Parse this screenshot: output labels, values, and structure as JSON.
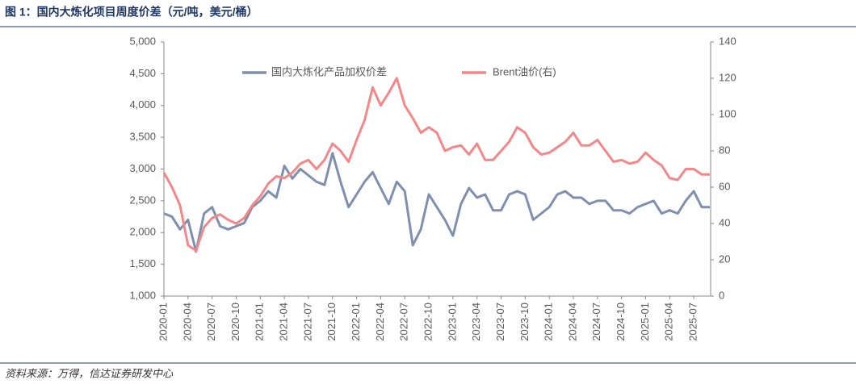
{
  "title": "图 1：国内大炼化项目周度价差（元/吨，美元/桶）",
  "source": "资料来源：万得，信达证券研发中心",
  "chart_data": {
    "type": "line",
    "categories": [
      "2020-01",
      null,
      null,
      "2020-04",
      null,
      null,
      "2020-07",
      null,
      null,
      "2020-10",
      null,
      null,
      "2021-01",
      null,
      null,
      "2021-04",
      null,
      null,
      "2021-07",
      null,
      null,
      "2021-10",
      null,
      null,
      "2022-01",
      null,
      null,
      "2022-04",
      null,
      null,
      "2022-07",
      null,
      null,
      "2022-10",
      null,
      null,
      "2023-01",
      null,
      null,
      "2023-04",
      null,
      null,
      "2023-07",
      null,
      null,
      "2023-10",
      null,
      null,
      "2024-01",
      null,
      null,
      "2024-04",
      null,
      null,
      "2024-07",
      null,
      null,
      "2024-10",
      null,
      null,
      "2025-01",
      null,
      null,
      "2025-04",
      null,
      null,
      "2025-07",
      null,
      null
    ],
    "series": [
      {
        "name": "国内大炼化产品加权价差",
        "color": "#7f8fae",
        "values": [
          2300,
          2250,
          2050,
          2200,
          1700,
          2300,
          2400,
          2100,
          2050,
          2100,
          2150,
          2400,
          2500,
          2650,
          2550,
          3050,
          2850,
          3000,
          2900,
          2800,
          2750,
          3250,
          2800,
          2400,
          2600,
          2800,
          2950,
          2700,
          2450,
          2800,
          2650,
          1800,
          2050,
          2600,
          2400,
          2200,
          1950,
          2450,
          2700,
          2550,
          2600,
          2350,
          2350,
          2600,
          2650,
          2600,
          2200,
          2300,
          2400,
          2600,
          2650,
          2550,
          2550,
          2450,
          2500,
          2500,
          2350,
          2350,
          2300,
          2400,
          2450,
          2500,
          2300,
          2350,
          2300,
          2500,
          2650,
          2400,
          2400
        ]
      },
      {
        "name": "Brent油价(右)",
        "color": "#f4878a",
        "axis": "y2",
        "values": [
          68,
          60,
          50,
          28,
          25,
          38,
          43,
          45,
          42,
          40,
          43,
          50,
          55,
          62,
          66,
          65,
          68,
          73,
          75,
          70,
          75,
          84,
          80,
          74,
          86,
          97,
          115,
          105,
          112,
          120,
          105,
          98,
          90,
          93,
          90,
          80,
          82,
          83,
          78,
          84,
          75,
          75,
          80,
          85,
          93,
          90,
          82,
          78,
          79,
          82,
          85,
          90,
          83,
          83,
          86,
          80,
          74,
          75,
          73,
          74,
          79,
          75,
          72,
          65,
          64,
          70,
          70,
          67,
          67
        ]
      }
    ],
    "ylim": [
      1000,
      5000
    ],
    "yticks": [
      {
        "value": 1000,
        "label": "1,000"
      },
      {
        "value": 1500,
        "label": "1,500"
      },
      {
        "value": 2000,
        "label": "2,000"
      },
      {
        "value": 2500,
        "label": "2,500"
      },
      {
        "value": 3000,
        "label": "3,000"
      },
      {
        "value": 3500,
        "label": "3,500"
      },
      {
        "value": 4000,
        "label": "4,000"
      },
      {
        "value": 4500,
        "label": "4,500"
      },
      {
        "value": 5000,
        "label": "5,000"
      }
    ],
    "y2lim": [
      0,
      140
    ],
    "y2ticks": [
      0,
      20,
      40,
      60,
      80,
      100,
      120,
      140
    ]
  }
}
